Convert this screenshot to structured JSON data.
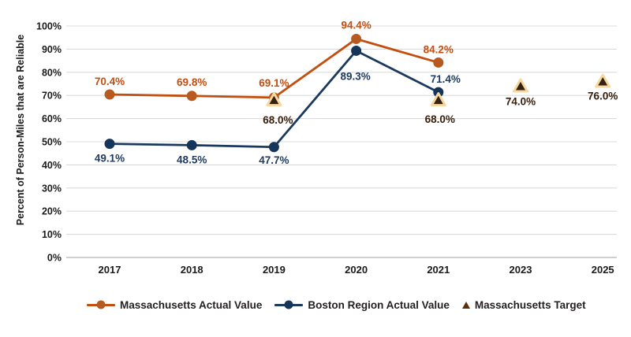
{
  "chart_data": {
    "type": "line",
    "title": "",
    "xlabel": "",
    "ylabel": "Percent of Person-Miles that are Reliable",
    "categories": [
      "2017",
      "2018",
      "2019",
      "2020",
      "2021",
      "2023",
      "2025"
    ],
    "ylim": [
      0,
      100
    ],
    "grid": true,
    "legend_position": "bottom",
    "yticks": [
      {
        "value": 0,
        "label": "0%"
      },
      {
        "value": 10,
        "label": "10%"
      },
      {
        "value": 20,
        "label": "20%"
      },
      {
        "value": 30,
        "label": "30%"
      },
      {
        "value": 40,
        "label": "40%"
      },
      {
        "value": 50,
        "label": "50%"
      },
      {
        "value": 60,
        "label": "60%"
      },
      {
        "value": 70,
        "label": "70%"
      },
      {
        "value": 80,
        "label": "80%"
      },
      {
        "value": 90,
        "label": "90%"
      },
      {
        "value": 100,
        "label": "100%"
      }
    ],
    "series": [
      {
        "name": "Massachusetts Actual Value",
        "marker": "circle",
        "line": true,
        "color": "#C24E10",
        "marker_color": "#B75A20",
        "label_color": "#C24E10",
        "points": [
          {
            "category": "2017",
            "value": 70.4,
            "label": "70.4%",
            "label_dx": 0,
            "label_dy": -17
          },
          {
            "category": "2018",
            "value": 69.8,
            "label": "69.8%",
            "label_dx": 0,
            "label_dy": -18
          },
          {
            "category": "2019",
            "value": 69.1,
            "label": "69.1%",
            "label_dx": 0,
            "label_dy": -19
          },
          {
            "category": "2020",
            "value": 94.4,
            "label": "94.4%",
            "label_dx": 0,
            "label_dy": -18
          },
          {
            "category": "2021",
            "value": 84.2,
            "label": "84.2%",
            "label_dx": 0,
            "label_dy": -17
          }
        ]
      },
      {
        "name": "Boston Region Actual Value",
        "marker": "circle",
        "line": true,
        "color": "#1B395D",
        "marker_color": "#16355B",
        "label_color": "#1E3A5F",
        "points": [
          {
            "category": "2017",
            "value": 49.1,
            "label": "49.1%",
            "label_dx": 0,
            "label_dy": 18
          },
          {
            "category": "2018",
            "value": 48.5,
            "label": "48.5%",
            "label_dx": 0,
            "label_dy": 18
          },
          {
            "category": "2019",
            "value": 47.7,
            "label": "47.7%",
            "label_dx": 0,
            "label_dy": 16
          },
          {
            "category": "2020",
            "value": 89.3,
            "label": "89.3%",
            "label_dx": -1,
            "label_dy": 32
          },
          {
            "category": "2021",
            "value": 71.4,
            "label": "71.4%",
            "label_dx": 9,
            "label_dy": -17
          }
        ]
      },
      {
        "name": "Massachusetts Target",
        "marker": "triangle",
        "line": false,
        "color": "#362112",
        "outline": "#F5D9A0",
        "label_color": "#38200D",
        "legend_marker_color": "#5C2D0E",
        "points": [
          {
            "category": "2019",
            "value": 68.0,
            "label": "68.0%",
            "label_dx": 5,
            "label_dy": 25
          },
          {
            "category": "2021",
            "value": 68.0,
            "label": "68.0%",
            "label_dx": 2,
            "label_dy": 24
          },
          {
            "category": "2023",
            "value": 74.0,
            "label": "74.0%",
            "label_dx": 0,
            "label_dy": 19
          },
          {
            "category": "2025",
            "value": 76.0,
            "label": "76.0%",
            "label_dx": 0,
            "label_dy": 18
          }
        ]
      }
    ]
  }
}
